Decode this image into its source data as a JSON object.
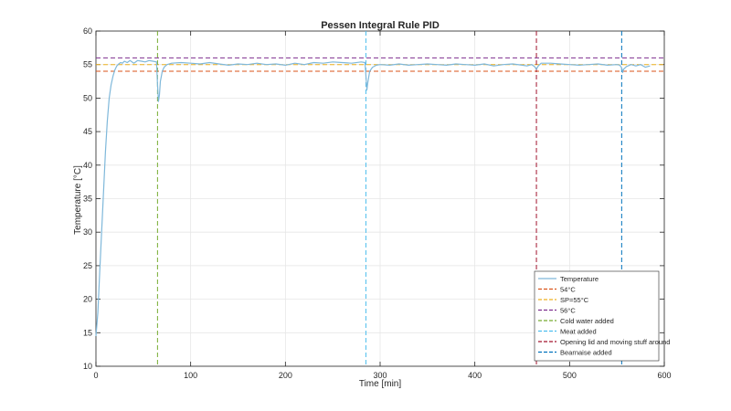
{
  "chart_data": {
    "type": "line",
    "title": "Pessen Integral Rule PID",
    "xlabel": "Time [min]",
    "ylabel": "Temperature [°C]",
    "xlim": [
      0,
      600
    ],
    "ylim": [
      10,
      60
    ],
    "xticks": [
      0,
      100,
      200,
      300,
      400,
      500,
      600
    ],
    "yticks": [
      10,
      15,
      20,
      25,
      30,
      35,
      40,
      45,
      50,
      55,
      60
    ],
    "grid": true,
    "legend_position": "bottom-right",
    "series": [
      {
        "name": "Temperature",
        "color": "#7fb8da",
        "style": "solid",
        "x": [
          0,
          2,
          4,
          6,
          8,
          10,
          12,
          14,
          16,
          18,
          20,
          22,
          24,
          26,
          28,
          30,
          33,
          36,
          40,
          44,
          48,
          52,
          56,
          60,
          64,
          65,
          66,
          67,
          68,
          70,
          72,
          75,
          80,
          90,
          100,
          110,
          120,
          130,
          140,
          150,
          160,
          170,
          180,
          190,
          200,
          210,
          220,
          230,
          240,
          250,
          260,
          270,
          280,
          284,
          285,
          286,
          287,
          289,
          292,
          296,
          300,
          310,
          320,
          330,
          340,
          350,
          360,
          370,
          380,
          390,
          400,
          410,
          420,
          430,
          440,
          450,
          455,
          460,
          463,
          465,
          467,
          470,
          480,
          490,
          500,
          510,
          520,
          530,
          540,
          550,
          553,
          555,
          556,
          557,
          560,
          565,
          570,
          575,
          580,
          585
        ],
        "y": [
          14.5,
          18,
          24,
          30,
          36,
          42,
          46.5,
          50,
          52,
          53.3,
          54.2,
          54.8,
          55.1,
          55.3,
          55.2,
          55.5,
          55.3,
          55.6,
          55.2,
          55.6,
          55.5,
          55.4,
          55.6,
          55.5,
          55.4,
          52,
          49.5,
          50.5,
          52.5,
          54,
          54.6,
          55,
          55.2,
          55.3,
          55.2,
          55.1,
          55.3,
          55.1,
          54.9,
          55.1,
          55,
          55.2,
          55,
          55.1,
          54.9,
          55.2,
          55,
          55.3,
          55.2,
          55.4,
          55.3,
          55.2,
          55.4,
          55.3,
          53.5,
          51.2,
          52.3,
          54,
          54.6,
          54.9,
          55,
          54.9,
          55.1,
          54.9,
          55,
          55.1,
          55,
          54.9,
          55.1,
          55,
          54.9,
          55.1,
          54.8,
          55,
          55.1,
          54.9,
          54.8,
          55,
          54.7,
          54.3,
          54.8,
          55.2,
          55.2,
          55.1,
          55,
          54.9,
          55,
          55.1,
          54.9,
          55,
          54.9,
          54.5,
          53.8,
          54.3,
          54.7,
          55,
          54.8,
          55,
          54.6,
          54.8
        ]
      },
      {
        "name": "54°C",
        "color": "#d95319",
        "style": "dashed",
        "hline": 54
      },
      {
        "name": "SP=55°C",
        "color": "#edb120",
        "style": "dashed",
        "hline": 55
      },
      {
        "name": "56°C",
        "color": "#7e2f8e",
        "style": "dashed",
        "hline": 56
      },
      {
        "name": "Cold water added",
        "color": "#77ac30",
        "style": "dashed",
        "vline": 65
      },
      {
        "name": "Meat added",
        "color": "#4dbeee",
        "style": "dashed",
        "vline": 285
      },
      {
        "name": "Opening lid and moving stuff around",
        "color": "#a2142f",
        "style": "dashed",
        "vline": 465
      },
      {
        "name": "Bearnaise added",
        "color": "#0072bd",
        "style": "dashed",
        "vline": 555
      }
    ]
  }
}
